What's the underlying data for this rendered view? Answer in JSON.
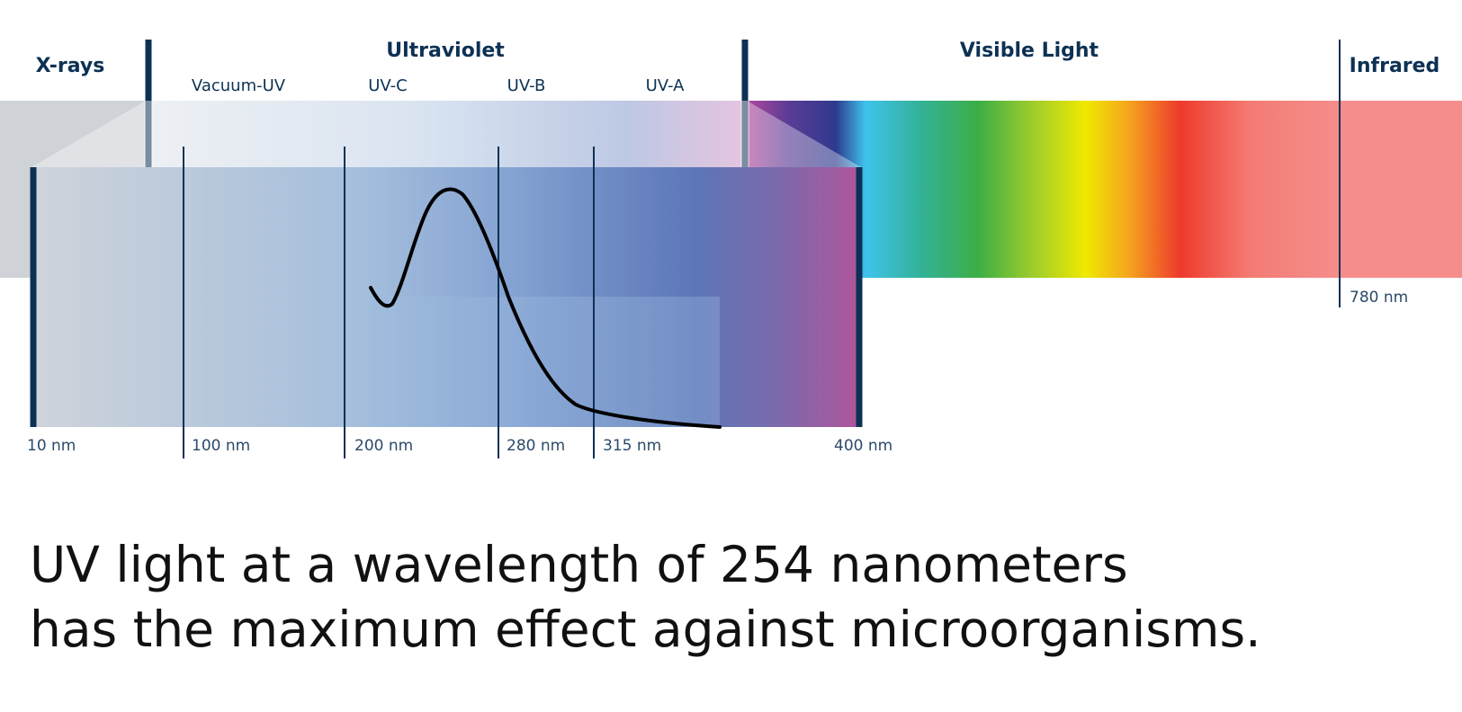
{
  "regions": {
    "xrays": "X-rays",
    "ultraviolet": "Ultraviolet",
    "visible": "Visible Light",
    "infrared": "Infrared"
  },
  "uv_bands": [
    "Vacuum-UV",
    "UV-C",
    "UV-B",
    "UV-A"
  ],
  "wavelength_marks": {
    "uv_scale": [
      "10 nm",
      "100 nm",
      "200 nm",
      "280 nm",
      "315 nm",
      "400 nm"
    ],
    "infrared_edge": "780 nm"
  },
  "caption": {
    "line1": "UV light at a wavelength of 254 nanometers",
    "line2": "has the maximum effect against microorganisms."
  },
  "colors": {
    "navy": "#0d3154",
    "curve": "#000000",
    "infrared": "#f58d8d"
  }
}
